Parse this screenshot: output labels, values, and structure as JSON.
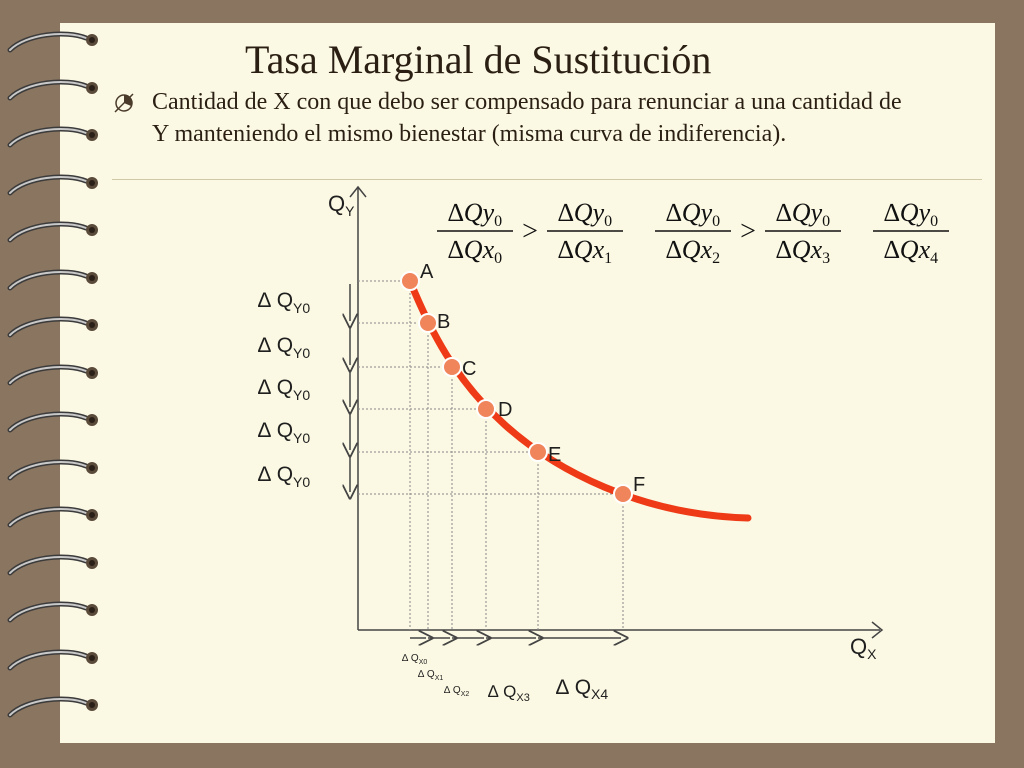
{
  "slide": {
    "title": "Tasa Marginal de Sustitución",
    "bullet_icon": "chart-bullet-icon",
    "bullet_text": "Cantidad de X con que debo ser compensado para renunciar a una cantidad de Y manteniendo el mismo bienestar (misma curva de indiferencia)."
  },
  "colors": {
    "curve": "#ee3a17",
    "point_fill": "#f0855c",
    "point_stroke": "#ffffff",
    "frame": "#8a7560",
    "paper": "#fbf9e3"
  },
  "axes": {
    "y_label": "Q",
    "y_sub": "Y",
    "x_label": "Q",
    "x_sub": "X"
  },
  "points": [
    {
      "label": "A"
    },
    {
      "label": "B"
    },
    {
      "label": "C"
    },
    {
      "label": "D"
    },
    {
      "label": "E"
    },
    {
      "label": "F"
    }
  ],
  "delta_y": {
    "symbol": "∆",
    "q": "Q",
    "sub": "Y0",
    "count": 5
  },
  "delta_x": [
    {
      "symbol": "∆",
      "q": "Q",
      "sub": "X0"
    },
    {
      "symbol": "∆",
      "q": "Q",
      "sub": "X1"
    },
    {
      "symbol": "∆",
      "q": "Q",
      "sub": "X2"
    },
    {
      "symbol": "∆",
      "q": "Q",
      "sub": "X3"
    },
    {
      "symbol": "∆",
      "q": "Q",
      "sub": "X4"
    }
  ],
  "formula": {
    "numerator": {
      "delta": "∆",
      "var": "Qy",
      "sub": "0"
    },
    "denominators": [
      {
        "delta": "∆",
        "var": "Qx",
        "sub": "0"
      },
      {
        "delta": "∆",
        "var": "Qx",
        "sub": "1"
      },
      {
        "delta": "∆",
        "var": "Qx",
        "sub": "2"
      },
      {
        "delta": "∆",
        "var": "Qx",
        "sub": "3"
      },
      {
        "delta": "∆",
        "var": "Qx",
        "sub": "4"
      }
    ],
    "relation": ">"
  }
}
